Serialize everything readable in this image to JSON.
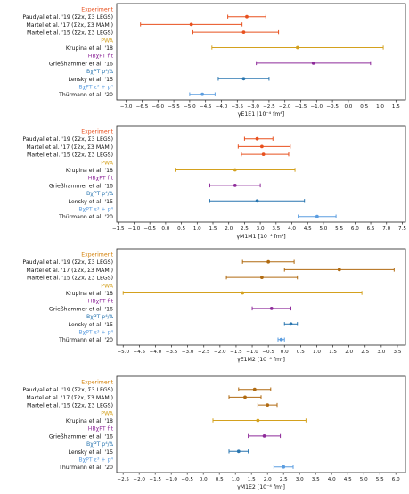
{
  "chart_data": [
    {
      "type": "scatter",
      "title": "",
      "xlabel": "γE1E1 [10⁻⁴ fm⁴]",
      "xlim": [
        -7.3,
        1.8
      ],
      "xticks": [
        -7.0,
        -6.5,
        -6.0,
        -5.5,
        -5.0,
        -4.5,
        -4.0,
        -3.5,
        -3.0,
        -2.5,
        -2.0,
        -1.5,
        -1.0,
        -0.5,
        0.0,
        0.5,
        1.0,
        1.5
      ],
      "xtick_labels": [
        "−7.0",
        "−6.5",
        "−6.0",
        "−5.5",
        "−5.0",
        "−4.5",
        "−4.0",
        "−3.5",
        "−3.0",
        "−2.5",
        "−2.0",
        "−1.5",
        "−1.0",
        "−0.5",
        "0.0",
        "0.5",
        "1.0",
        "1.5"
      ],
      "rows": [
        {
          "kind": "header",
          "label": "Experiment",
          "color": "#e8511f"
        },
        {
          "kind": "point",
          "label": "Paudyal et al. '19 (Σ2x, Σ3 LEGS)",
          "value": -3.2,
          "low": -3.8,
          "high": -2.6,
          "color": "#e8511f"
        },
        {
          "kind": "point",
          "label": "Martel et al. '17 (Σ2x, Σ3 MAMI)",
          "value": -4.95,
          "low": -6.55,
          "high": -3.35,
          "color": "#e8511f"
        },
        {
          "kind": "point",
          "label": "Martel et al. '15 (Σ2x, Σ3 LEGS)",
          "value": -3.3,
          "low": -4.9,
          "high": -2.2,
          "color": "#e8511f"
        },
        {
          "kind": "header",
          "label": "PWA",
          "color": "#d4a11e"
        },
        {
          "kind": "point",
          "label": "Krupina et al. '18",
          "value": -1.6,
          "low": -4.3,
          "high": 1.1,
          "color": "#d4a11e"
        },
        {
          "kind": "header",
          "label": "HBχPT fit",
          "color": "#8e2a9a"
        },
        {
          "kind": "point",
          "label": "Grießhammer et al. '16",
          "value": -1.1,
          "low": -2.9,
          "high": 0.7,
          "color": "#8e2a9a"
        },
        {
          "kind": "header",
          "label": "BχPT p⁴/Δ",
          "color": "#2a76b0"
        },
        {
          "kind": "point",
          "label": "Lensky et al. '15",
          "value": -3.3,
          "low": -4.1,
          "high": -2.5,
          "color": "#2a76b0"
        },
        {
          "kind": "header",
          "label": "BχPT ε³ + p⁴",
          "color": "#5b9de0"
        },
        {
          "kind": "point",
          "label": "Thürmann et al. '20",
          "value": -4.6,
          "low": -5.0,
          "high": -4.2,
          "color": "#5b9de0"
        }
      ]
    },
    {
      "type": "scatter",
      "title": "",
      "xlabel": "γM1M1 [10⁻⁴ fm⁴]",
      "xlim": [
        -1.55,
        7.6
      ],
      "xticks": [
        -1.5,
        -1.0,
        -0.5,
        0.0,
        0.5,
        1.0,
        1.5,
        2.0,
        2.5,
        3.0,
        3.5,
        4.0,
        4.5,
        5.0,
        5.5,
        6.0,
        6.5,
        7.0,
        7.5
      ],
      "xtick_labels": [
        "−1.5",
        "−1.0",
        "−0.5",
        "0.0",
        "0.5",
        "1.0",
        "1.5",
        "2.0",
        "2.5",
        "3.0",
        "3.5",
        "4.0",
        "4.5",
        "5.0",
        "5.5",
        "6.0",
        "6.5",
        "7.0",
        "7.5"
      ],
      "rows": [
        {
          "kind": "header",
          "label": "Experiment",
          "color": "#e8511f"
        },
        {
          "kind": "point",
          "label": "Paudyal et al. '19 (Σ2x, Σ3 LEGS)",
          "value": 2.9,
          "low": 2.5,
          "high": 3.4,
          "color": "#e8511f"
        },
        {
          "kind": "point",
          "label": "Martel et al. '17 (Σ2x, Σ3 MAMI)",
          "value": 3.05,
          "low": 2.3,
          "high": 3.95,
          "color": "#e8511f"
        },
        {
          "kind": "point",
          "label": "Martel et al. '15 (Σ2x, Σ3 LEGS)",
          "value": 3.1,
          "low": 2.4,
          "high": 3.9,
          "color": "#e8511f"
        },
        {
          "kind": "header",
          "label": "PWA",
          "color": "#d4a11e"
        },
        {
          "kind": "point",
          "label": "Krupina et al. '18",
          "value": 2.2,
          "low": 0.3,
          "high": 4.1,
          "color": "#d4a11e"
        },
        {
          "kind": "header",
          "label": "HBχPT fit",
          "color": "#8e2a9a"
        },
        {
          "kind": "point",
          "label": "Grießhammer et al. '16",
          "value": 2.2,
          "low": 1.4,
          "high": 3.0,
          "color": "#8e2a9a"
        },
        {
          "kind": "header",
          "label": "BχPT p⁴/Δ",
          "color": "#2a76b0"
        },
        {
          "kind": "point",
          "label": "Lensky et al. '15",
          "value": 2.9,
          "low": 1.4,
          "high": 4.4,
          "color": "#2a76b0"
        },
        {
          "kind": "header",
          "label": "BχPT ε³ + p⁴",
          "color": "#5b9de0"
        },
        {
          "kind": "point",
          "label": "Thürmann et al. '20",
          "value": 4.8,
          "low": 4.2,
          "high": 5.4,
          "color": "#5b9de0"
        }
      ]
    },
    {
      "type": "scatter",
      "title": "",
      "xlabel": "γE1M2 [10⁻⁴ fm⁴]",
      "xlim": [
        -5.2,
        3.75
      ],
      "xticks": [
        -5.0,
        -4.5,
        -4.0,
        -3.5,
        -3.0,
        -2.5,
        -2.0,
        -1.5,
        -1.0,
        -0.5,
        0.0,
        0.5,
        1.0,
        1.5,
        2.0,
        2.5,
        3.0,
        3.5
      ],
      "xtick_labels": [
        "−5.0",
        "−4.5",
        "−4.0",
        "−3.5",
        "−3.0",
        "−2.5",
        "−2.0",
        "−1.5",
        "−1.0",
        "−0.5",
        "0.0",
        "0.5",
        "1.0",
        "1.5",
        "2.0",
        "2.5",
        "3.0",
        "3.5"
      ],
      "rows": [
        {
          "kind": "header",
          "label": "Experiment",
          "color": "#d4820a"
        },
        {
          "kind": "point",
          "label": "Paudyal et al. '19 (Σ2x, Σ3 LEGS)",
          "value": -0.5,
          "low": -1.3,
          "high": 0.3,
          "color": "#b06a10"
        },
        {
          "kind": "point",
          "label": "Martel et al. '17 (Σ2x, Σ3 MAMI)",
          "value": 1.7,
          "low": 0.0,
          "high": 3.4,
          "color": "#b06a10"
        },
        {
          "kind": "point",
          "label": "Martel et al. '15 (Σ2x, Σ3 LEGS)",
          "value": -0.7,
          "low": -1.8,
          "high": 0.4,
          "color": "#b06a10"
        },
        {
          "kind": "header",
          "label": "PWA",
          "color": "#d4a11e"
        },
        {
          "kind": "point",
          "label": "Krupina et al. '18",
          "value": -1.3,
          "low": -5.0,
          "high": 2.4,
          "color": "#d4a11e"
        },
        {
          "kind": "header",
          "label": "HBχPT fit",
          "color": "#8e2a9a"
        },
        {
          "kind": "point",
          "label": "Grießhammer et al. '16",
          "value": -0.4,
          "low": -1.0,
          "high": 0.2,
          "color": "#8e2a9a"
        },
        {
          "kind": "header",
          "label": "BχPT p⁴/Δ",
          "color": "#2a76b0"
        },
        {
          "kind": "point",
          "label": "Lensky et al. '15",
          "value": 0.2,
          "low": 0.0,
          "high": 0.4,
          "color": "#2a76b0"
        },
        {
          "kind": "header",
          "label": "BχPT ε³ + p⁴",
          "color": "#5b9de0"
        },
        {
          "kind": "point",
          "label": "Thürmann et al. '20",
          "value": -0.1,
          "low": -0.2,
          "high": 0.0,
          "color": "#5b9de0"
        }
      ]
    },
    {
      "type": "scatter",
      "title": "",
      "xlabel": "γM1E2 [10⁻⁴ fm⁴]",
      "xlim": [
        -2.7,
        6.3
      ],
      "xticks": [
        -2.5,
        -2.0,
        -1.5,
        -1.0,
        -0.5,
        0.0,
        0.5,
        1.0,
        1.5,
        2.0,
        2.5,
        3.0,
        3.5,
        4.0,
        4.5,
        5.0,
        5.5,
        6.0
      ],
      "xtick_labels": [
        "−2.5",
        "−2.0",
        "−1.5",
        "−1.0",
        "−0.5",
        "0.0",
        "0.5",
        "1.0",
        "1.5",
        "2.0",
        "2.5",
        "3.0",
        "3.5",
        "4.0",
        "4.5",
        "5.0",
        "5.5",
        "6.0"
      ],
      "rows": [
        {
          "kind": "header",
          "label": "Experiment",
          "color": "#d4820a"
        },
        {
          "kind": "point",
          "label": "Paudyal et al. '19 (Σ2x, Σ3 LEGS)",
          "value": 1.6,
          "low": 1.1,
          "high": 2.1,
          "color": "#b06a10"
        },
        {
          "kind": "point",
          "label": "Martel et al. '17 (Σ2x, Σ3 MAMI)",
          "value": 1.3,
          "low": 0.8,
          "high": 1.8,
          "color": "#b06a10"
        },
        {
          "kind": "point",
          "label": "Martel et al. '15 (Σ2x, Σ3 LEGS)",
          "value": 2.0,
          "low": 1.7,
          "high": 2.3,
          "color": "#b06a10"
        },
        {
          "kind": "header",
          "label": "PWA",
          "color": "#d4a11e"
        },
        {
          "kind": "point",
          "label": "Krupina et al. '18",
          "value": 1.7,
          "low": 0.3,
          "high": 3.2,
          "color": "#d4a11e"
        },
        {
          "kind": "header",
          "label": "HBχPT fit",
          "color": "#8e2a9a"
        },
        {
          "kind": "point",
          "label": "Grießhammer et al. '16",
          "value": 1.9,
          "low": 1.4,
          "high": 2.4,
          "color": "#8e2a9a"
        },
        {
          "kind": "header",
          "label": "BχPT p⁴/Δ",
          "color": "#2a76b0"
        },
        {
          "kind": "point",
          "label": "Lensky et al. '15",
          "value": 1.1,
          "low": 0.8,
          "high": 1.4,
          "color": "#2a76b0"
        },
        {
          "kind": "header",
          "label": "BχPT ε³ + p⁴",
          "color": "#5b9de0"
        },
        {
          "kind": "point",
          "label": "Thürmann et al. '20",
          "value": 2.5,
          "low": 2.2,
          "high": 2.8,
          "color": "#5b9de0"
        }
      ]
    }
  ]
}
